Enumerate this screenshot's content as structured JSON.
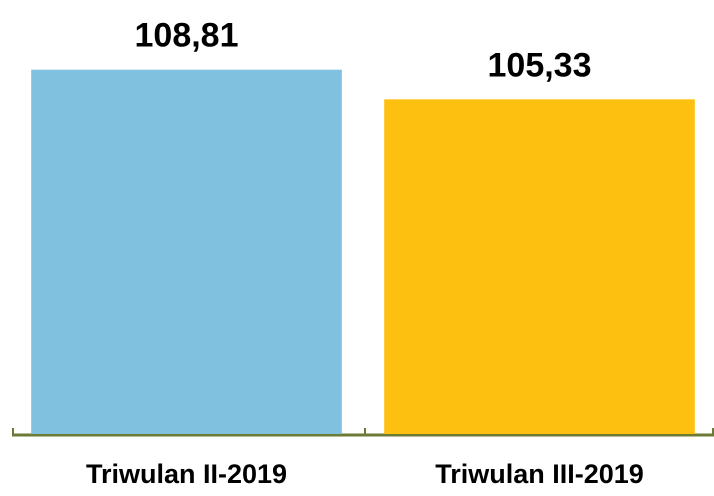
{
  "chart_data": {
    "type": "bar",
    "categories": [
      "Triwulan II-2019",
      "Triwulan III-2019"
    ],
    "values": [
      108.81,
      105.33
    ],
    "value_labels": [
      "108,81",
      "105,33"
    ],
    "colors": [
      "#7fc1de",
      "#fdc010"
    ],
    "ylim": [
      66,
      117
    ]
  }
}
